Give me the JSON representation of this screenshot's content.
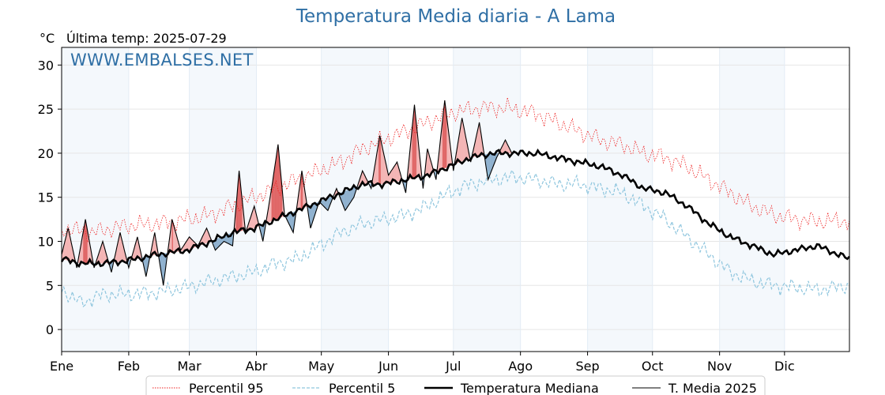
{
  "title": "Temperatura Media diaria - A Lama",
  "unit_label": "°C",
  "last_temp_label": "Última temp: 2025-07-29",
  "watermark": "WWW.EMBALSES.NET",
  "chart_data": {
    "type": "line",
    "ylim": [
      -2.5,
      32
    ],
    "yticks": [
      0,
      5,
      10,
      15,
      20,
      25,
      30
    ],
    "months": [
      "Ene",
      "Feb",
      "Mar",
      "Abr",
      "May",
      "Jun",
      "Jul",
      "Ago",
      "Sep",
      "Oct",
      "Nov",
      "Dic"
    ],
    "grid": true,
    "legend_position": "bottom",
    "colors": {
      "p95": "#ee2222",
      "p5": "#8fc6de",
      "median": "#000000",
      "media2025": "#000000",
      "above_fill": "#f4b5b5",
      "above_strong": "#e06666",
      "below_fill": "#8fb1cf",
      "below_strong": "#3c6f9c",
      "title": "#2f6fa5",
      "band": "#dce9f5"
    },
    "series": [
      {
        "name": "Percentil 95",
        "style": "dotted-red",
        "x": [
          1,
          15,
          31,
          45,
          59,
          70,
          80,
          90,
          100,
          110,
          120,
          130,
          140,
          150,
          160,
          170,
          180,
          190,
          200,
          210,
          220,
          230,
          240,
          250,
          260,
          270,
          280,
          290,
          300,
          310,
          320,
          330,
          340,
          350,
          365
        ],
        "y": [
          11.5,
          11,
          11.8,
          12,
          12.5,
          13,
          14,
          15,
          16,
          17,
          18,
          19,
          20.5,
          21.5,
          22.5,
          23.5,
          24.5,
          25,
          25.2,
          25,
          24.5,
          23.5,
          22.5,
          21.5,
          21,
          20,
          19.5,
          18.5,
          17,
          15.5,
          14,
          13,
          12.5,
          12.3,
          12.3
        ]
      },
      {
        "name": "Percentil 5",
        "style": "dashed-blue",
        "x": [
          1,
          10,
          20,
          31,
          45,
          59,
          70,
          80,
          90,
          100,
          110,
          120,
          130,
          140,
          150,
          160,
          170,
          180,
          190,
          200,
          210,
          220,
          230,
          240,
          250,
          260,
          270,
          280,
          290,
          300,
          310,
          320,
          330,
          340,
          350,
          365
        ],
        "y": [
          4.5,
          3,
          4,
          4,
          4.2,
          4.8,
          5.5,
          6,
          6.5,
          7.5,
          8,
          9.5,
          11,
          12,
          12.5,
          13,
          14,
          15.5,
          16.5,
          17,
          17.3,
          17,
          16.5,
          16.5,
          16,
          15.5,
          14,
          12.5,
          10.5,
          8.5,
          6.5,
          5.5,
          5,
          4.8,
          4.5,
          5
        ]
      },
      {
        "name": "Temperatura Mediana",
        "style": "thick-black",
        "x": [
          1,
          10,
          20,
          31,
          45,
          59,
          70,
          80,
          90,
          100,
          110,
          120,
          130,
          140,
          150,
          160,
          170,
          180,
          190,
          200,
          210,
          220,
          230,
          240,
          250,
          260,
          270,
          280,
          290,
          300,
          310,
          320,
          330,
          340,
          350,
          365
        ],
        "y": [
          8,
          7.5,
          7.5,
          7.8,
          8.5,
          9,
          10,
          11,
          11.5,
          12.5,
          13.5,
          14.5,
          15.5,
          16.5,
          16.5,
          17,
          17.5,
          18.5,
          19.5,
          20,
          20,
          20,
          19.5,
          19,
          18.5,
          17.5,
          16,
          15.5,
          14,
          12,
          10.5,
          9.5,
          8.5,
          9,
          9.5,
          8
        ]
      },
      {
        "name": "T. Media 2025",
        "style": "thin-black",
        "x": [
          1,
          4,
          8,
          12,
          16,
          20,
          24,
          28,
          32,
          36,
          40,
          44,
          48,
          52,
          56,
          60,
          64,
          68,
          72,
          76,
          80,
          83,
          86,
          90,
          94,
          98,
          101,
          104,
          108,
          112,
          116,
          120,
          124,
          128,
          132,
          136,
          140,
          144,
          148,
          152,
          156,
          160,
          164,
          168,
          170,
          174,
          178,
          182,
          186,
          190,
          194,
          198,
          202,
          206,
          209
        ],
        "y": [
          8.5,
          11.5,
          7,
          12.5,
          7,
          10,
          6.5,
          11,
          7,
          10.5,
          6,
          11,
          5,
          12.5,
          9,
          10.5,
          9.5,
          11.5,
          9,
          10,
          9.5,
          18,
          11,
          14,
          10,
          16,
          21,
          13,
          11,
          18,
          11.5,
          14.5,
          13.5,
          16,
          13.5,
          15,
          18,
          16,
          22,
          17.5,
          19,
          15.5,
          25.5,
          16,
          20.5,
          17,
          26,
          18,
          24,
          19,
          23.5,
          17,
          19.5,
          21.5,
          20
        ]
      }
    ],
    "legend": [
      "Percentil 95",
      "Percentil 5",
      "Temperatura Mediana",
      "T. Media 2025"
    ]
  }
}
